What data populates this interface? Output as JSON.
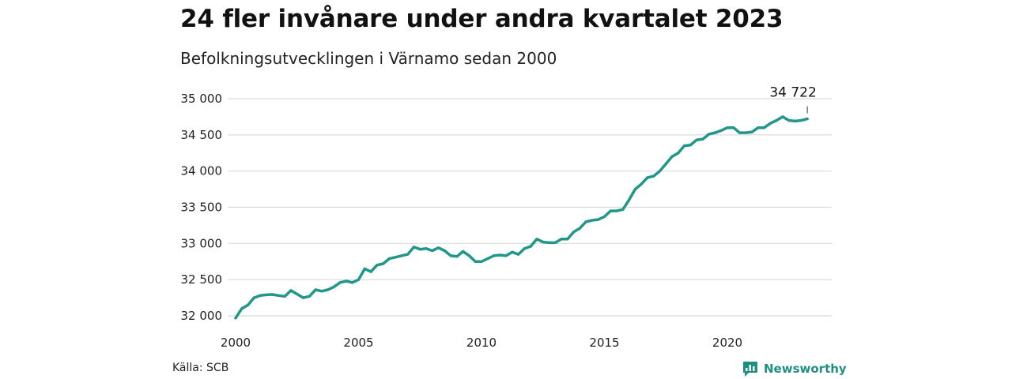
{
  "header": {
    "title": "24 fler invånare under andra kvartalet 2023",
    "subtitle": "Befolkningsutvecklingen i Värnamo sedan 2000"
  },
  "footer": {
    "source": "Källa: SCB",
    "brand": "Newsworthy",
    "brand_icon": "bar-chart-badge-icon"
  },
  "colors": {
    "line": "#23968a",
    "grid": "#d9d9d9",
    "brand": "#1f8f80"
  },
  "chart_data": {
    "type": "line",
    "title": "24 fler invånare under andra kvartalet 2023",
    "subtitle": "Befolkningsutvecklingen i Värnamo sedan 2000",
    "xlabel": "",
    "ylabel": "",
    "x_ticks": [
      "2000",
      "2005",
      "2010",
      "2015",
      "2020"
    ],
    "y_ticks": [
      "32 000",
      "32 500",
      "33 000",
      "33 500",
      "34 000",
      "34 500",
      "35 000"
    ],
    "ylim": [
      32000,
      35000
    ],
    "xlim": [
      "2000-Q1",
      "2023-Q2"
    ],
    "grid": true,
    "annotation": {
      "label": "34 722",
      "x": "2023-Q2",
      "y": 34722
    },
    "series": [
      {
        "x": [
          "2000-Q1",
          "2000-Q2",
          "2000-Q3",
          "2000-Q4",
          "2001-Q1",
          "2001-Q2",
          "2001-Q3",
          "2001-Q4",
          "2002-Q1",
          "2002-Q2",
          "2002-Q3",
          "2002-Q4",
          "2003-Q1",
          "2003-Q2",
          "2003-Q3",
          "2003-Q4",
          "2004-Q1",
          "2004-Q2",
          "2004-Q3",
          "2004-Q4",
          "2005-Q1",
          "2005-Q2",
          "2005-Q3",
          "2005-Q4",
          "2006-Q1",
          "2006-Q2",
          "2006-Q3",
          "2006-Q4",
          "2007-Q1",
          "2007-Q2",
          "2007-Q3",
          "2007-Q4",
          "2008-Q1",
          "2008-Q2",
          "2008-Q3",
          "2008-Q4",
          "2009-Q1",
          "2009-Q2",
          "2009-Q3",
          "2009-Q4",
          "2010-Q1",
          "2010-Q2",
          "2010-Q3",
          "2010-Q4",
          "2011-Q1",
          "2011-Q2",
          "2011-Q3",
          "2011-Q4",
          "2012-Q1",
          "2012-Q2",
          "2012-Q3",
          "2012-Q4",
          "2013-Q1",
          "2013-Q2",
          "2013-Q3",
          "2013-Q4",
          "2014-Q1",
          "2014-Q2",
          "2014-Q3",
          "2014-Q4",
          "2015-Q1",
          "2015-Q2",
          "2015-Q3",
          "2015-Q4",
          "2016-Q1",
          "2016-Q2",
          "2016-Q3",
          "2016-Q4",
          "2017-Q1",
          "2017-Q2",
          "2017-Q3",
          "2017-Q4",
          "2018-Q1",
          "2018-Q2",
          "2018-Q3",
          "2018-Q4",
          "2019-Q1",
          "2019-Q2",
          "2019-Q3",
          "2019-Q4",
          "2020-Q1",
          "2020-Q2",
          "2020-Q3",
          "2020-Q4",
          "2021-Q1",
          "2021-Q2",
          "2021-Q3",
          "2021-Q4",
          "2022-Q1",
          "2022-Q2",
          "2022-Q3",
          "2022-Q4",
          "2023-Q1",
          "2023-Q2"
        ],
        "values": [
          31970,
          32100,
          32150,
          32250,
          32280,
          32290,
          32295,
          32280,
          32270,
          32350,
          32300,
          32250,
          32270,
          32360,
          32340,
          32360,
          32400,
          32460,
          32480,
          32460,
          32500,
          32650,
          32610,
          32700,
          32720,
          32790,
          32810,
          32830,
          32850,
          32950,
          32920,
          32930,
          32900,
          32940,
          32900,
          32830,
          32820,
          32890,
          32830,
          32750,
          32750,
          32790,
          32830,
          32840,
          32830,
          32880,
          32850,
          32930,
          32960,
          33060,
          33020,
          33010,
          33010,
          33060,
          33060,
          33160,
          33210,
          33300,
          33320,
          33330,
          33370,
          33450,
          33450,
          33470,
          33600,
          33750,
          33820,
          33910,
          33930,
          34000,
          34100,
          34200,
          34250,
          34350,
          34360,
          34430,
          34440,
          34510,
          34530,
          34560,
          34600,
          34600,
          34530,
          34530,
          34540,
          34600,
          34600,
          34660,
          34700,
          34750,
          34700,
          34690,
          34700,
          34722
        ]
      }
    ]
  }
}
